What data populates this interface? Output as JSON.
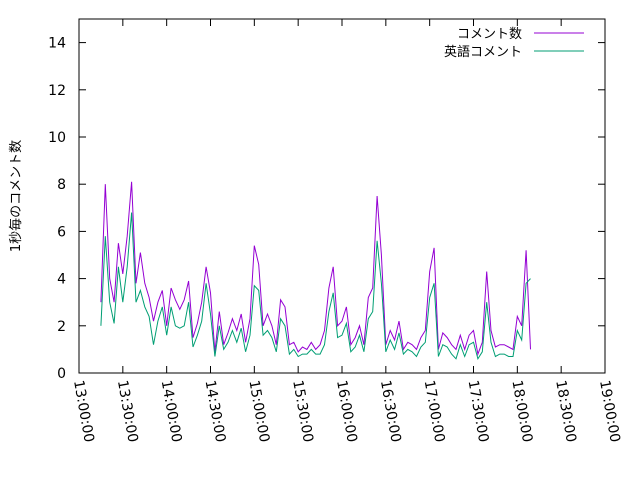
{
  "chart_data": {
    "type": "line",
    "title": "",
    "xlabel": "",
    "ylabel": "1秒毎のコメント数",
    "ylim": [
      0,
      15
    ],
    "xlim": [
      "13:00:00",
      "19:00:00"
    ],
    "y_ticks": [
      "0",
      "2",
      "4",
      "6",
      "8",
      "10",
      "12",
      "14"
    ],
    "x_ticks": [
      "13:00:00",
      "13:30:00",
      "14:00:00",
      "14:30:00",
      "15:00:00",
      "15:30:00",
      "16:00:00",
      "16:30:00",
      "17:00:00",
      "17:30:00",
      "18:00:00",
      "18:30:00",
      "19:00:00"
    ],
    "grid": false,
    "legend_position": "top-right",
    "series": [
      {
        "name": "コメント数",
        "color": "#9400d3",
        "points": [
          [
            "13:15:00",
            3.0
          ],
          [
            "13:18:00",
            8.0
          ],
          [
            "13:21:00",
            4.0
          ],
          [
            "13:24:00",
            3.0
          ],
          [
            "13:27:00",
            5.5
          ],
          [
            "13:30:00",
            4.2
          ],
          [
            "13:33:00",
            5.8
          ],
          [
            "13:36:00",
            8.1
          ],
          [
            "13:39:00",
            3.8
          ],
          [
            "13:42:00",
            5.1
          ],
          [
            "13:45:00",
            3.8
          ],
          [
            "13:48:00",
            3.2
          ],
          [
            "13:51:00",
            2.2
          ],
          [
            "13:54:00",
            3.0
          ],
          [
            "13:57:00",
            3.5
          ],
          [
            "14:00:00",
            2.0
          ],
          [
            "14:03:00",
            3.6
          ],
          [
            "14:06:00",
            3.1
          ],
          [
            "14:09:00",
            2.7
          ],
          [
            "14:12:00",
            3.1
          ],
          [
            "14:15:00",
            3.9
          ],
          [
            "14:18:00",
            1.5
          ],
          [
            "14:21:00",
            2.1
          ],
          [
            "14:24:00",
            3.0
          ],
          [
            "14:27:00",
            4.5
          ],
          [
            "14:30:00",
            3.4
          ],
          [
            "14:33:00",
            0.9
          ],
          [
            "14:36:00",
            2.6
          ],
          [
            "14:39:00",
            1.2
          ],
          [
            "14:42:00",
            1.7
          ],
          [
            "14:45:00",
            2.3
          ],
          [
            "14:48:00",
            1.8
          ],
          [
            "14:51:00",
            2.5
          ],
          [
            "14:54:00",
            1.3
          ],
          [
            "14:57:00",
            2.3
          ],
          [
            "15:00:00",
            5.4
          ],
          [
            "15:03:00",
            4.6
          ],
          [
            "15:06:00",
            2.0
          ],
          [
            "15:09:00",
            2.5
          ],
          [
            "15:12:00",
            2.0
          ],
          [
            "15:15:00",
            1.2
          ],
          [
            "15:18:00",
            3.1
          ],
          [
            "15:21:00",
            2.8
          ],
          [
            "15:24:00",
            1.2
          ],
          [
            "15:27:00",
            1.3
          ],
          [
            "15:30:00",
            0.9
          ],
          [
            "15:33:00",
            1.1
          ],
          [
            "15:36:00",
            1.0
          ],
          [
            "15:39:00",
            1.3
          ],
          [
            "15:42:00",
            1.0
          ],
          [
            "15:45:00",
            1.2
          ],
          [
            "15:48:00",
            1.8
          ],
          [
            "15:51:00",
            3.6
          ],
          [
            "15:54:00",
            4.5
          ],
          [
            "15:57:00",
            2.0
          ],
          [
            "16:00:00",
            2.2
          ],
          [
            "16:03:00",
            2.8
          ],
          [
            "16:06:00",
            1.2
          ],
          [
            "16:09:00",
            1.5
          ],
          [
            "16:12:00",
            2.0
          ],
          [
            "16:15:00",
            1.2
          ],
          [
            "16:18:00",
            3.2
          ],
          [
            "16:21:00",
            3.6
          ],
          [
            "16:24:00",
            7.5
          ],
          [
            "16:27:00",
            5.0
          ],
          [
            "16:30:00",
            1.2
          ],
          [
            "16:33:00",
            1.8
          ],
          [
            "16:36:00",
            1.4
          ],
          [
            "16:39:00",
            2.2
          ],
          [
            "16:42:00",
            1.0
          ],
          [
            "16:45:00",
            1.3
          ],
          [
            "16:48:00",
            1.2
          ],
          [
            "16:51:00",
            1.0
          ],
          [
            "16:54:00",
            1.5
          ],
          [
            "16:57:00",
            1.8
          ],
          [
            "17:00:00",
            4.3
          ],
          [
            "17:03:00",
            5.3
          ],
          [
            "17:06:00",
            1.0
          ],
          [
            "17:09:00",
            1.7
          ],
          [
            "17:12:00",
            1.5
          ],
          [
            "17:15:00",
            1.2
          ],
          [
            "17:18:00",
            1.0
          ],
          [
            "17:21:00",
            1.6
          ],
          [
            "17:24:00",
            1.0
          ],
          [
            "17:27:00",
            1.6
          ],
          [
            "17:30:00",
            1.8
          ],
          [
            "17:33:00",
            0.8
          ],
          [
            "17:36:00",
            1.3
          ],
          [
            "17:39:00",
            4.3
          ],
          [
            "17:42:00",
            1.8
          ],
          [
            "17:45:00",
            1.1
          ],
          [
            "17:48:00",
            1.2
          ],
          [
            "17:51:00",
            1.2
          ],
          [
            "17:54:00",
            1.1
          ],
          [
            "17:57:00",
            1.0
          ],
          [
            "18:00:00",
            2.4
          ],
          [
            "18:03:00",
            2.0
          ],
          [
            "18:06:00",
            5.2
          ],
          [
            "18:09:00",
            1.0
          ]
        ]
      },
      {
        "name": "英語コメント",
        "color": "#009e73",
        "points": [
          [
            "13:15:00",
            2.0
          ],
          [
            "13:18:00",
            5.8
          ],
          [
            "13:21:00",
            3.0
          ],
          [
            "13:24:00",
            2.1
          ],
          [
            "13:27:00",
            4.5
          ],
          [
            "13:30:00",
            3.0
          ],
          [
            "13:33:00",
            4.5
          ],
          [
            "13:36:00",
            6.8
          ],
          [
            "13:39:00",
            3.0
          ],
          [
            "13:42:00",
            3.5
          ],
          [
            "13:45:00",
            2.8
          ],
          [
            "13:48:00",
            2.4
          ],
          [
            "13:51:00",
            1.2
          ],
          [
            "13:54:00",
            2.2
          ],
          [
            "13:57:00",
            2.8
          ],
          [
            "14:00:00",
            1.6
          ],
          [
            "14:03:00",
            2.8
          ],
          [
            "14:06:00",
            2.0
          ],
          [
            "14:09:00",
            1.9
          ],
          [
            "14:12:00",
            2.0
          ],
          [
            "14:15:00",
            3.0
          ],
          [
            "14:18:00",
            1.1
          ],
          [
            "14:21:00",
            1.6
          ],
          [
            "14:24:00",
            2.2
          ],
          [
            "14:27:00",
            3.8
          ],
          [
            "14:30:00",
            2.5
          ],
          [
            "14:33:00",
            0.7
          ],
          [
            "14:36:00",
            2.0
          ],
          [
            "14:39:00",
            1.0
          ],
          [
            "14:42:00",
            1.3
          ],
          [
            "14:45:00",
            1.8
          ],
          [
            "14:48:00",
            1.3
          ],
          [
            "14:51:00",
            1.9
          ],
          [
            "14:54:00",
            0.9
          ],
          [
            "14:57:00",
            1.6
          ],
          [
            "15:00:00",
            3.7
          ],
          [
            "15:03:00",
            3.5
          ],
          [
            "15:06:00",
            1.6
          ],
          [
            "15:09:00",
            1.8
          ],
          [
            "15:12:00",
            1.5
          ],
          [
            "15:15:00",
            0.9
          ],
          [
            "15:18:00",
            2.3
          ],
          [
            "15:21:00",
            2.0
          ],
          [
            "15:24:00",
            0.8
          ],
          [
            "15:27:00",
            1.0
          ],
          [
            "15:30:00",
            0.7
          ],
          [
            "15:33:00",
            0.8
          ],
          [
            "15:36:00",
            0.8
          ],
          [
            "15:39:00",
            1.0
          ],
          [
            "15:42:00",
            0.8
          ],
          [
            "15:45:00",
            0.8
          ],
          [
            "15:48:00",
            1.2
          ],
          [
            "15:51:00",
            2.6
          ],
          [
            "15:54:00",
            3.4
          ],
          [
            "15:57:00",
            1.5
          ],
          [
            "16:00:00",
            1.6
          ],
          [
            "16:03:00",
            2.1
          ],
          [
            "16:06:00",
            0.9
          ],
          [
            "16:09:00",
            1.1
          ],
          [
            "16:12:00",
            1.6
          ],
          [
            "16:15:00",
            0.9
          ],
          [
            "16:18:00",
            2.3
          ],
          [
            "16:21:00",
            2.6
          ],
          [
            "16:24:00",
            5.6
          ],
          [
            "16:27:00",
            3.8
          ],
          [
            "16:30:00",
            0.9
          ],
          [
            "16:33:00",
            1.4
          ],
          [
            "16:36:00",
            1.0
          ],
          [
            "16:39:00",
            1.7
          ],
          [
            "16:42:00",
            0.8
          ],
          [
            "16:45:00",
            1.0
          ],
          [
            "16:48:00",
            0.9
          ],
          [
            "16:51:00",
            0.7
          ],
          [
            "16:54:00",
            1.1
          ],
          [
            "16:57:00",
            1.3
          ],
          [
            "17:00:00",
            3.2
          ],
          [
            "17:03:00",
            3.8
          ],
          [
            "17:06:00",
            0.7
          ],
          [
            "17:09:00",
            1.2
          ],
          [
            "17:12:00",
            1.1
          ],
          [
            "17:15:00",
            0.8
          ],
          [
            "17:18:00",
            0.6
          ],
          [
            "17:21:00",
            1.2
          ],
          [
            "17:24:00",
            0.7
          ],
          [
            "17:27:00",
            1.2
          ],
          [
            "17:30:00",
            1.3
          ],
          [
            "17:33:00",
            0.6
          ],
          [
            "17:36:00",
            0.9
          ],
          [
            "17:39:00",
            3.0
          ],
          [
            "17:42:00",
            1.3
          ],
          [
            "17:45:00",
            0.7
          ],
          [
            "17:48:00",
            0.8
          ],
          [
            "17:51:00",
            0.8
          ],
          [
            "17:54:00",
            0.7
          ],
          [
            "17:57:00",
            0.7
          ],
          [
            "18:00:00",
            1.8
          ],
          [
            "18:03:00",
            1.4
          ],
          [
            "18:06:00",
            3.8
          ],
          [
            "18:09:00",
            4.0
          ]
        ]
      }
    ]
  }
}
